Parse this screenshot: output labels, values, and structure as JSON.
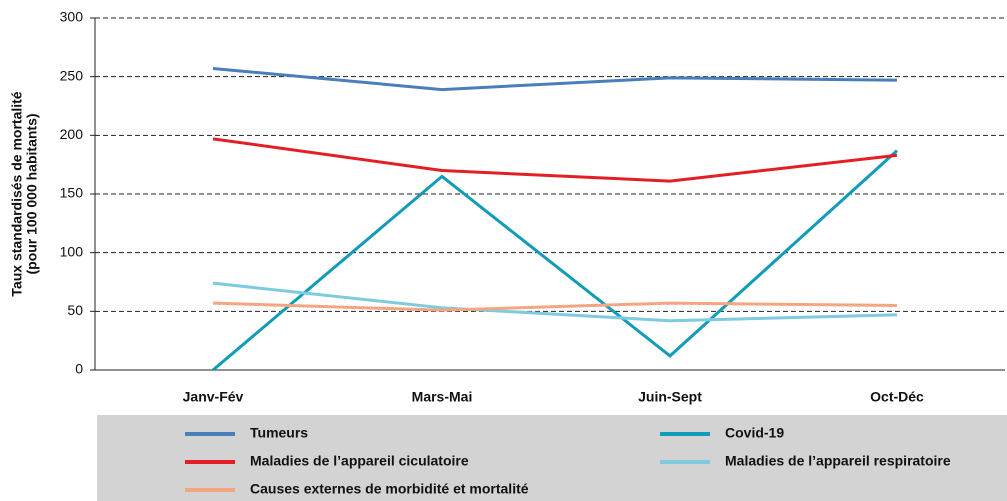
{
  "chart_data": {
    "type": "line",
    "y_label": [
      "Taux standardisés de mortalité",
      "(pour 100 000 habitants)"
    ],
    "categories": [
      "Janv-Fév",
      "Mars-Mai",
      "Juin-Sept",
      "Oct-Déc"
    ],
    "series": [
      {
        "name": "Tumeurs",
        "color": "#4a7ebb",
        "values": [
          257,
          239,
          249,
          247
        ]
      },
      {
        "name": "Covid-19",
        "color": "#109bb8",
        "values": [
          0,
          165,
          12,
          187
        ]
      },
      {
        "name": "Maladies de l’appareil ciculatoire",
        "color": "#e31e24",
        "values": [
          197,
          170,
          161,
          183
        ]
      },
      {
        "name": "Maladies de l’appareil respiratoire",
        "color": "#7ecbe0",
        "values": [
          74,
          53,
          42,
          47
        ]
      },
      {
        "name": "Causes externes de morbidité et mortalité",
        "color": "#f4a582",
        "values": [
          57,
          51,
          57,
          55
        ]
      }
    ],
    "ylim": [
      0,
      300
    ],
    "yticks": [
      0,
      50,
      100,
      150,
      200,
      250,
      300
    ],
    "grid": true
  }
}
